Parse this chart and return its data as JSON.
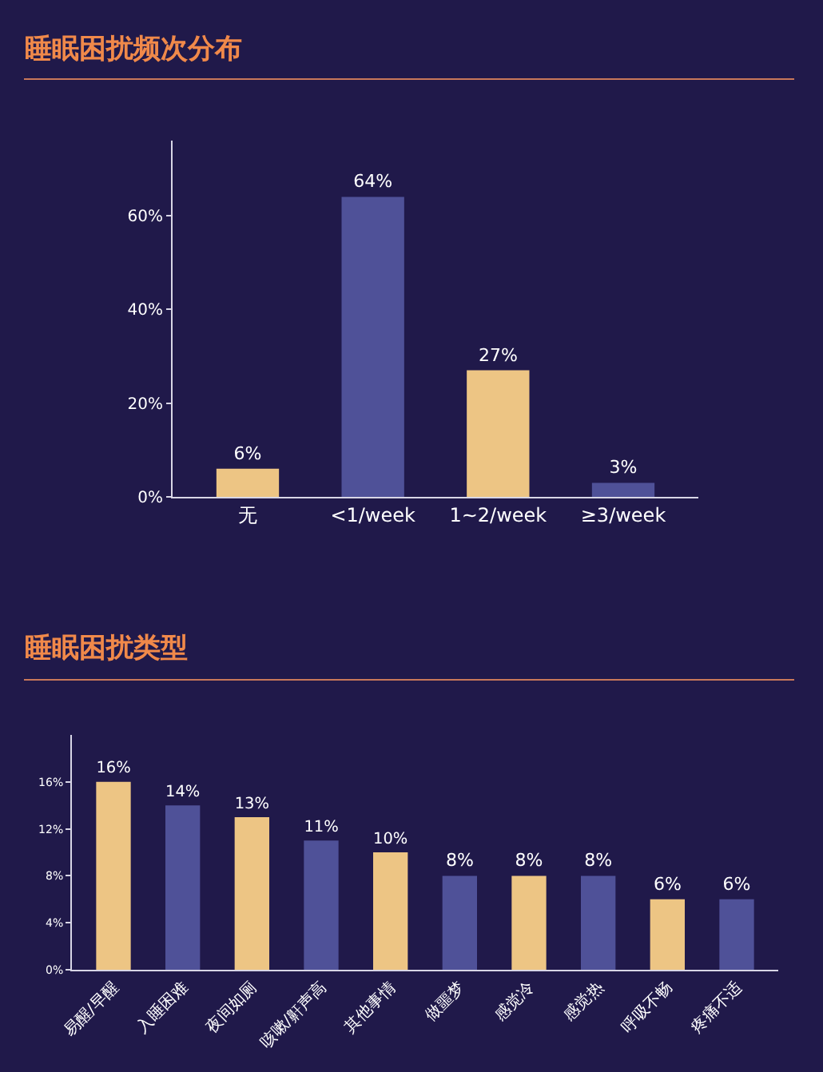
{
  "chart_data": [
    {
      "type": "bar",
      "title": "睡眠困扰频次分布",
      "categories": [
        "无",
        "<1/week",
        "1~2/week",
        "≥3/week"
      ],
      "values": [
        6,
        64,
        27,
        3
      ],
      "colors": [
        "#edc584",
        "#4f5198",
        "#edc584",
        "#4f5198"
      ],
      "value_labels": [
        "6%",
        "64%",
        "27%",
        "3%"
      ],
      "ylim": [
        0,
        76
      ],
      "yticks": [
        {
          "value": 0,
          "label": "0%"
        },
        {
          "value": 20,
          "label": "20%"
        },
        {
          "value": 40,
          "label": "40%"
        },
        {
          "value": 60,
          "label": "60%"
        }
      ],
      "grid": false
    },
    {
      "type": "bar",
      "title": "睡眠困扰类型",
      "categories": [
        "易醒/早醒",
        "入睡困难",
        "夜间如厕",
        "咳嗽/鼾声高",
        "其他事情",
        "做噩梦",
        "感觉冷",
        "感觉热",
        "呼吸不畅",
        "疼痛不适"
      ],
      "values": [
        16,
        14,
        13,
        11,
        10,
        8,
        8,
        8,
        6,
        6
      ],
      "colors": [
        "#edc584",
        "#4f5198",
        "#edc584",
        "#4f5198",
        "#edc584",
        "#4f5198",
        "#edc584",
        "#4f5198",
        "#edc584",
        "#4f5198"
      ],
      "value_labels": [
        "16%",
        "14%",
        "13%",
        "11%",
        "10%",
        "8%",
        "8%",
        "8%",
        "6%",
        "6%"
      ],
      "ylim": [
        0,
        20
      ],
      "yticks": [
        {
          "value": 0,
          "label": "0%"
        },
        {
          "value": 4,
          "label": "4%"
        },
        {
          "value": 8,
          "label": "8%"
        },
        {
          "value": 12,
          "label": "12%"
        },
        {
          "value": 16,
          "label": "16%"
        }
      ],
      "grid": false
    }
  ]
}
